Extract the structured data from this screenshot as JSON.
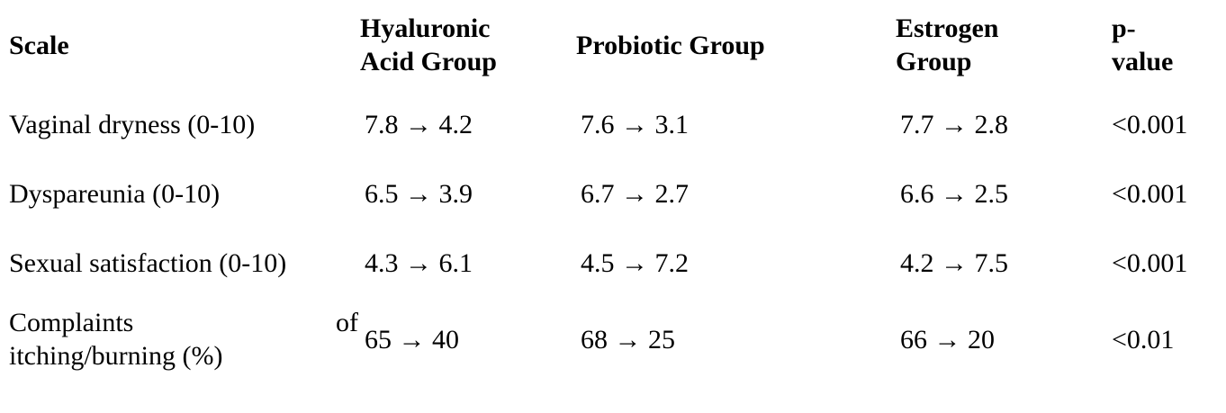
{
  "table": {
    "headers": {
      "scale": "Scale",
      "hyaluronic": "Hyaluronic Acid Group",
      "probiotic": "Probiotic Group",
      "estrogen": "Estrogen Group",
      "pvalue": "p-value"
    },
    "header_lines": {
      "hyaluronic": [
        "Hyaluronic",
        "Acid Group"
      ],
      "estrogen": [
        "Estrogen",
        "Group"
      ],
      "pvalue": [
        "p-",
        "value"
      ]
    },
    "rows": [
      {
        "scale": "Vaginal dryness (0-10)",
        "hyaluronic": "7.8 → 4.2",
        "probiotic": "7.6 → 3.1",
        "estrogen": "7.7 → 2.8",
        "pvalue": "<0.001"
      },
      {
        "scale": "Dyspareunia (0-10)",
        "hyaluronic": "6.5 → 3.9",
        "probiotic": "6.7 → 2.7",
        "estrogen": "6.6 → 2.5",
        "pvalue": "<0.001"
      },
      {
        "scale": "Sexual satisfaction (0-10)",
        "hyaluronic": "4.3 → 6.1",
        "probiotic": "4.5 → 7.2",
        "estrogen": "4.2 → 7.5",
        "pvalue": "<0.001"
      },
      {
        "scale": "Complaints of itching/burning (%)",
        "scale_line1_a": "Complaints",
        "scale_line1_b": "of",
        "scale_line2": "itching/burning (%)",
        "hyaluronic": "65 → 40",
        "probiotic": "68 → 25",
        "estrogen": "66 → 20",
        "pvalue": "<0.01"
      }
    ]
  }
}
